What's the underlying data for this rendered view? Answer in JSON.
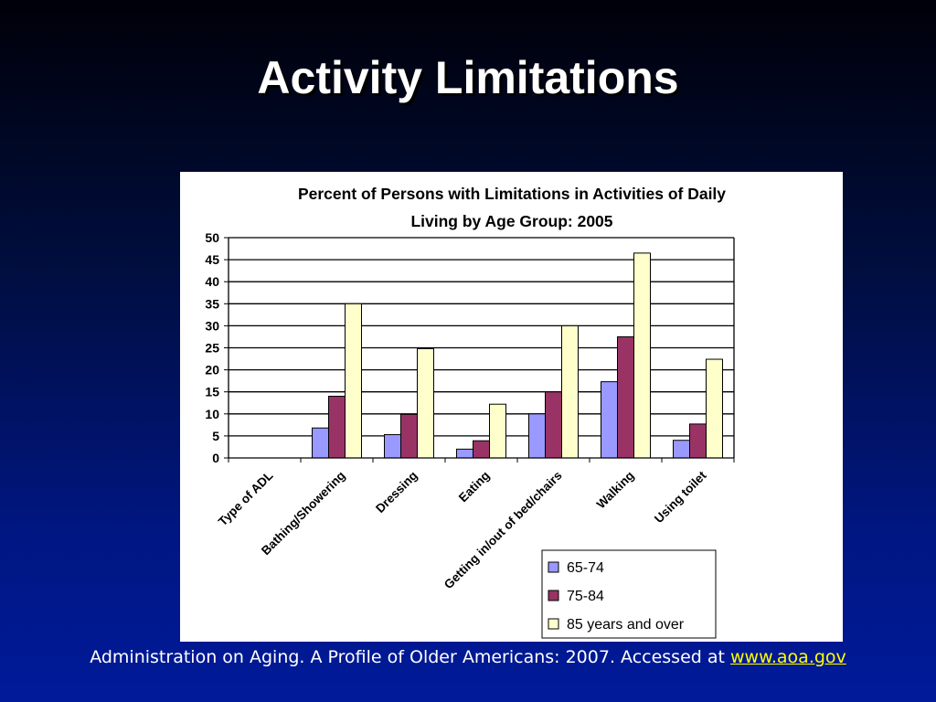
{
  "slide": {
    "title": "Activity Limitations"
  },
  "citation": {
    "text": "Administration on Aging. A Profile of Older Americans: 2007. Accessed at ",
    "link_text": "www.aoa.gov"
  },
  "chart_data": {
    "type": "bar",
    "title_lines": [
      "Percent of Persons with Limitations in Activities of Daily",
      "Living by Age Group: 2005"
    ],
    "categories": [
      "Type of ADL",
      "Bathing/Showering",
      "Dressing",
      "Eating",
      "Getting in/out of bed/chairs",
      "Walking",
      "Using toilet"
    ],
    "series": [
      {
        "name": "65-74",
        "color": "#9999ff",
        "values": [
          null,
          6.8,
          5.3,
          2.0,
          10.0,
          17.3,
          4.0
        ]
      },
      {
        "name": "75-84",
        "color": "#993366",
        "values": [
          null,
          14.0,
          9.9,
          3.9,
          15.0,
          27.5,
          7.7
        ]
      },
      {
        "name": "85 years and over",
        "color": "#ffffcc",
        "values": [
          null,
          35.0,
          24.8,
          12.2,
          30.0,
          46.5,
          22.4
        ]
      }
    ],
    "ylim": [
      0,
      50
    ],
    "yticks": [
      0,
      5,
      10,
      15,
      20,
      25,
      30,
      35,
      40,
      45,
      50
    ],
    "grid": true,
    "legend_position": "bottom-right"
  }
}
